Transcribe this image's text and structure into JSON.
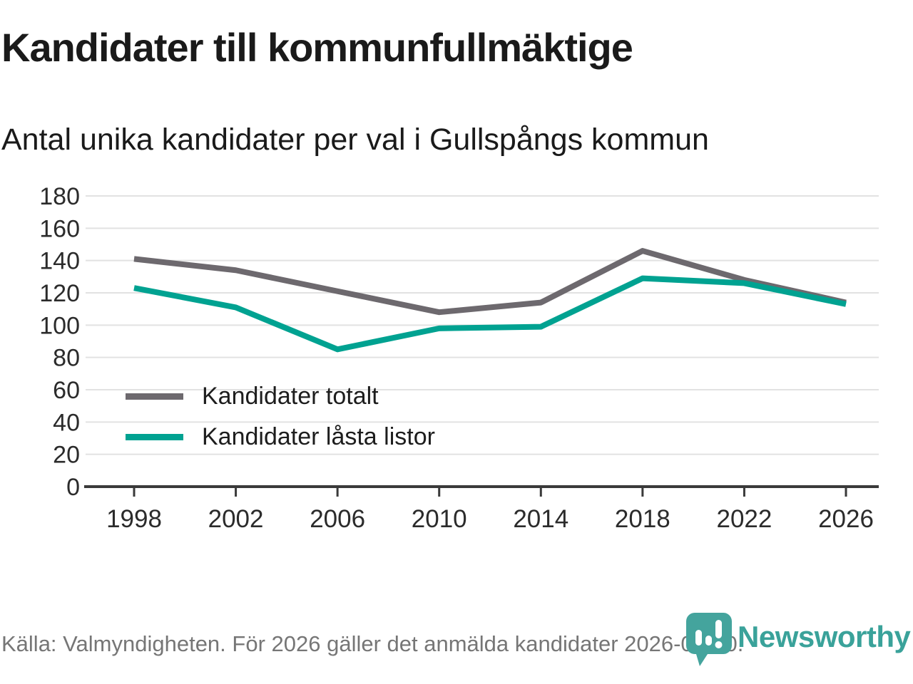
{
  "chart_data": {
    "type": "line",
    "title": "Kandidater till kommunfullmäktige",
    "subtitle": "Antal unika kandidater per val i Gullspångs kommun",
    "categories": [
      "1998",
      "2002",
      "2006",
      "2010",
      "2014",
      "2018",
      "2022",
      "2026"
    ],
    "series": [
      {
        "name": "Kandidater totalt",
        "color": "#6d696e",
        "values": [
          141,
          134,
          121,
          108,
          114,
          146,
          128,
          114
        ]
      },
      {
        "name": "Kandidater låsta listor",
        "color": "#00a291",
        "values": [
          123,
          111,
          85,
          98,
          99,
          129,
          126,
          113
        ]
      }
    ],
    "xlabel": "",
    "ylabel": "",
    "ylim": [
      0,
      180
    ],
    "ytick_step": 20,
    "grid": true,
    "legend_position": "inside-bottom-left"
  },
  "footer": {
    "source": "Källa: Valmyndigheten. För 2026 gäller det anmälda kandidater 2026-04-10."
  },
  "logo": {
    "wordmark": "Newsworthy",
    "icon": "newsworthy-pin-icon"
  },
  "colors": {
    "axis": "#3a3a3a",
    "grid": "#e2e2e2",
    "tick_label": "#2b2b2b",
    "muted_text": "#767676",
    "logo_teal": "#44a49d",
    "wordmark_teal": "#3aa29a"
  }
}
